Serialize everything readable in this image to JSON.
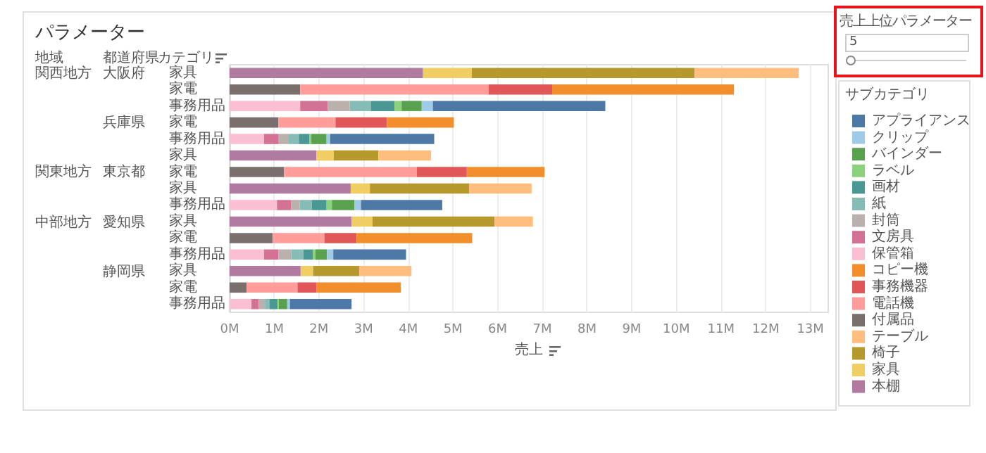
{
  "chart_data": {
    "type": "bar",
    "orientation": "horizontal",
    "stacked": true,
    "title": "パラメーター",
    "xlabel": "売上",
    "ylabel": "カテゴリ",
    "legend_title": "サブカテゴリ",
    "legend": "right",
    "grid": "x",
    "categories": [
      "家具",
      "家電",
      "事務用品",
      "家電",
      "事務用品",
      "家具",
      "家電",
      "家具",
      "事務用品",
      "家具",
      "家電",
      "事務用品",
      "家具",
      "家電",
      "事務用品"
    ],
    "xlim": [
      0,
      13.4
    ],
    "xticks": [
      {
        "value": 0,
        "label": "0M"
      },
      {
        "value": 1,
        "label": "1M"
      },
      {
        "value": 2,
        "label": "2M"
      },
      {
        "value": 3,
        "label": "3M"
      },
      {
        "value": 4,
        "label": "4M"
      },
      {
        "value": 5,
        "label": "5M"
      },
      {
        "value": 6,
        "label": "6M"
      },
      {
        "value": 7,
        "label": "7M"
      },
      {
        "value": 8,
        "label": "8M"
      },
      {
        "value": 9,
        "label": "9M"
      },
      {
        "value": 10,
        "label": "10M"
      },
      {
        "value": 11,
        "label": "11M"
      },
      {
        "value": 12,
        "label": "12M"
      },
      {
        "value": 13,
        "label": "13M"
      }
    ],
    "annotations": [
      "地域",
      "都道府県",
      "関西地方",
      "関東地方",
      "中部地方",
      "大阪府",
      "兵庫県",
      "東京都",
      "愛知県",
      "静岡県",
      "売上上位パラメーター",
      "5"
    ],
    "series": [
      {
        "name": "本棚",
        "color": "#b07aa1",
        "values": [
          4.33,
          null,
          null,
          null,
          null,
          1.94,
          null,
          2.71,
          null,
          2.73,
          null,
          null,
          1.59,
          null,
          null
        ]
      },
      {
        "name": "家具",
        "color": "#f1ce63",
        "values": [
          1.09,
          null,
          null,
          null,
          null,
          0.39,
          null,
          0.43,
          null,
          0.47,
          null,
          null,
          0.28,
          null,
          null
        ]
      },
      {
        "name": "椅子",
        "color": "#b6992d",
        "values": [
          4.99,
          null,
          null,
          null,
          null,
          1.0,
          null,
          2.22,
          null,
          2.73,
          null,
          null,
          1.03,
          null,
          null
        ]
      },
      {
        "name": "テーブル",
        "color": "#ffbe7d",
        "values": [
          2.33,
          null,
          null,
          null,
          null,
          1.18,
          null,
          1.4,
          null,
          0.86,
          null,
          null,
          1.17,
          null,
          null
        ]
      },
      {
        "name": "付属品",
        "color": "#79706e",
        "values": [
          null,
          1.58,
          null,
          1.09,
          null,
          null,
          1.22,
          null,
          null,
          null,
          0.96,
          null,
          null,
          0.38,
          null
        ]
      },
      {
        "name": "電話機",
        "color": "#ff9d9a",
        "values": [
          null,
          4.22,
          null,
          1.28,
          null,
          null,
          2.97,
          null,
          null,
          null,
          1.16,
          null,
          null,
          1.14,
          null
        ]
      },
      {
        "name": "事務機器",
        "color": "#e15759",
        "values": [
          null,
          1.42,
          null,
          1.15,
          null,
          null,
          1.12,
          null,
          null,
          null,
          0.72,
          null,
          null,
          0.42,
          null
        ]
      },
      {
        "name": "コピー機",
        "color": "#f28e2b",
        "values": [
          null,
          4.07,
          null,
          1.5,
          null,
          null,
          1.74,
          null,
          null,
          null,
          2.59,
          null,
          null,
          1.89,
          null
        ]
      },
      {
        "name": "保管箱",
        "color": "#fabfd2",
        "values": [
          null,
          null,
          1.58,
          null,
          0.77,
          null,
          null,
          null,
          1.06,
          null,
          null,
          0.77,
          null,
          null,
          0.49
        ]
      },
      {
        "name": "文房具",
        "color": "#d37295",
        "values": [
          null,
          null,
          0.62,
          null,
          0.33,
          null,
          null,
          null,
          0.32,
          null,
          null,
          0.32,
          null,
          null,
          0.16
        ]
      },
      {
        "name": "封筒",
        "color": "#bab0ac",
        "values": [
          null,
          null,
          0.49,
          null,
          0.21,
          null,
          null,
          null,
          0.19,
          null,
          null,
          0.29,
          null,
          null,
          0.14
        ]
      },
      {
        "name": "紙",
        "color": "#86bcb6",
        "values": [
          null,
          null,
          0.47,
          null,
          0.24,
          null,
          null,
          null,
          0.27,
          null,
          null,
          0.27,
          null,
          null,
          0.1
        ]
      },
      {
        "name": "画材",
        "color": "#499894",
        "values": [
          null,
          null,
          0.53,
          null,
          0.24,
          null,
          null,
          null,
          0.33,
          null,
          null,
          0.21,
          null,
          null,
          0.18
        ]
      },
      {
        "name": "ラベル",
        "color": "#8cd17d",
        "values": [
          null,
          null,
          0.16,
          null,
          0.04,
          null,
          null,
          null,
          0.12,
          null,
          null,
          0.06,
          null,
          null,
          0.03
        ]
      },
      {
        "name": "バインダー",
        "color": "#59a14f",
        "values": [
          null,
          null,
          0.45,
          null,
          0.34,
          null,
          null,
          null,
          0.5,
          null,
          null,
          0.26,
          null,
          null,
          0.19
        ]
      },
      {
        "name": "クリップ",
        "color": "#a0cbe8",
        "values": [
          null,
          null,
          0.25,
          null,
          0.08,
          null,
          null,
          null,
          0.15,
          null,
          null,
          0.14,
          null,
          null,
          0.06
        ]
      },
      {
        "name": "アプライアンス",
        "color": "#4e79a7",
        "values": [
          null,
          null,
          3.86,
          null,
          2.33,
          null,
          null,
          null,
          1.82,
          null,
          null,
          1.63,
          null,
          null,
          1.38
        ]
      }
    ]
  }
}
